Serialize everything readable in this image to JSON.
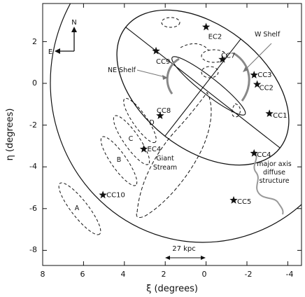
{
  "chart_data": {
    "type": "scatter",
    "title": "",
    "xlabel": "ξ (degrees)",
    "ylabel": "η (degrees)",
    "xlim": [
      8,
      -4.5
    ],
    "ylim": [
      -8.8,
      3.8
    ],
    "x_ticks": [
      8,
      6,
      4,
      2,
      0,
      -2,
      -4
    ],
    "y_ticks": [
      2,
      0,
      -2,
      -4,
      -6,
      -8
    ],
    "grid": false,
    "legend": "none",
    "series": [
      {
        "points": [
          {
            "label": "EC2",
            "x": 0.0,
            "y": 2.7
          },
          {
            "label": "CC9",
            "x": 2.45,
            "y": 1.55
          },
          {
            "label": "CC7",
            "x": -0.8,
            "y": 1.15
          },
          {
            "label": "CC3",
            "x": -2.35,
            "y": 0.4
          },
          {
            "label": "CC2",
            "x": -2.5,
            "y": -0.05
          },
          {
            "label": "CC1",
            "x": -3.1,
            "y": -1.45
          },
          {
            "label": "CC8",
            "x": 2.25,
            "y": -1.55
          },
          {
            "label": "EC4",
            "x": 3.05,
            "y": -3.15
          },
          {
            "label": "CC4",
            "x": -2.35,
            "y": -3.35
          },
          {
            "label": "CC10",
            "x": 5.05,
            "y": -5.35
          },
          {
            "label": "CC5",
            "x": -1.35,
            "y": -5.6
          }
        ]
      }
    ],
    "features": {
      "ne_shelf": "NE Shelf",
      "w_shelf": "W Shelf",
      "giant_stream_line1": "Giant",
      "giant_stream_line2": "Stream",
      "major_axis_line1": "major axis",
      "major_axis_line2": "diffuse",
      "major_axis_line3": "structure",
      "stream_fields": [
        "A",
        "B",
        "C",
        "D"
      ]
    },
    "compass": {
      "north": "N",
      "east": "E"
    },
    "scale_bar": {
      "label": "27 kpc"
    }
  }
}
